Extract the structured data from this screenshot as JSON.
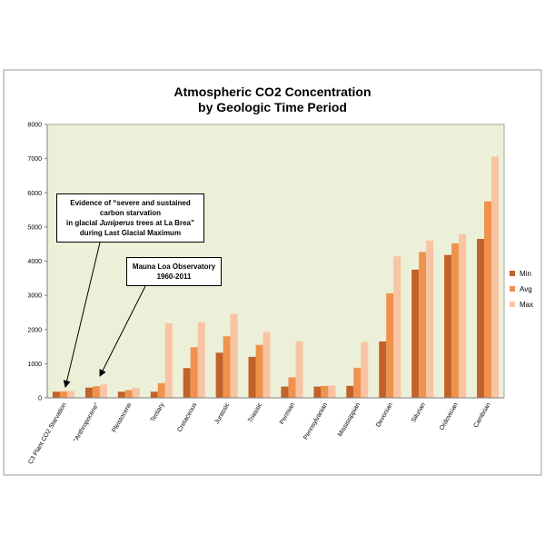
{
  "chart_data": {
    "type": "bar",
    "title_lines": [
      "Atmospheric CO2 Concentration",
      "by Geologic Time Period"
    ],
    "categories": [
      "C3 Plant CO2 Starvation",
      "\"Anthropocene\"",
      "Pleistocene",
      "Tertiary",
      "Cretaceous",
      "Jurassic",
      "Triassic",
      "Permian",
      "Pennsylvanian",
      "Mississippian",
      "Devonian",
      "Silurian",
      "Ordovician",
      "Cambrian"
    ],
    "series": [
      {
        "name": "Min",
        "color": "#c0622a",
        "values": [
          180,
          300,
          180,
          180,
          870,
          1320,
          1200,
          330,
          330,
          350,
          1650,
          3750,
          4180,
          4650
        ]
      },
      {
        "name": "Avg",
        "color": "#f0924e",
        "values": [
          190,
          340,
          230,
          430,
          1480,
          1800,
          1550,
          600,
          350,
          880,
          3060,
          4270,
          4520,
          5750
        ]
      },
      {
        "name": "Max",
        "color": "#f8c4a4",
        "values": [
          200,
          390,
          300,
          2180,
          2210,
          2460,
          1930,
          1650,
          360,
          1640,
          4140,
          4600,
          4790,
          7060
        ]
      }
    ],
    "ylim": [
      0,
      8000
    ],
    "yticks": [
      "0",
      "1000",
      "2000",
      "3000",
      "4000",
      "5000",
      "6000",
      "7000",
      "8000"
    ],
    "grid": false,
    "legend_position": "right",
    "plot_background": "#ecf0d8",
    "annotations": [
      {
        "id": "starvation",
        "lines": [
          "Evidence of “severe and sustained",
          "carbon starvation",
          "in glacial Juniperus trees at La Brea”",
          "during Last Glacial Maximum"
        ],
        "points_to": "C3 Plant CO2 Starvation"
      },
      {
        "id": "mauna-loa",
        "lines": [
          "Mauna Loa Observatory",
          "1960-2011"
        ],
        "points_to": "\"Anthropocene\""
      }
    ]
  }
}
